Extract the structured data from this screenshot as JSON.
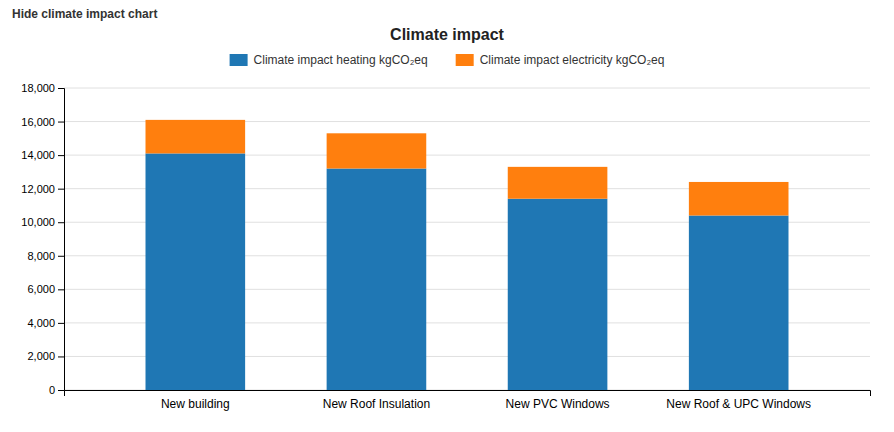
{
  "chart_data": {
    "type": "bar",
    "stacked": true,
    "title": "Climate impact",
    "annotations": [
      "Hide climate impact chart"
    ],
    "categories": [
      "New building",
      "New Roof Insulation",
      "New PVC Windows",
      "New Roof & UPC Windows"
    ],
    "series": [
      {
        "name": "Climate impact heating kgCO₂eq",
        "values": [
          14100,
          13200,
          11400,
          10400
        ]
      },
      {
        "name": "Climate impact electricity kgCO₂eq",
        "values": [
          2000,
          2100,
          1900,
          2000
        ]
      }
    ],
    "ylim": [
      0,
      18000
    ],
    "yticks": [
      0,
      {
        "value": 2000,
        "label": "2,000"
      },
      {
        "value": 4000,
        "label": "4,000"
      },
      {
        "value": 6000,
        "label": "6,000"
      },
      {
        "value": 8000,
        "label": "8,000"
      },
      {
        "value": 10000,
        "label": "10,000"
      },
      {
        "value": 12000,
        "label": "12,000"
      },
      {
        "value": 14000,
        "label": "14,000"
      },
      {
        "value": 16000,
        "label": "16,000"
      },
      {
        "value": 18000,
        "label": "18,000"
      }
    ],
    "grid": true,
    "legend": "top"
  }
}
